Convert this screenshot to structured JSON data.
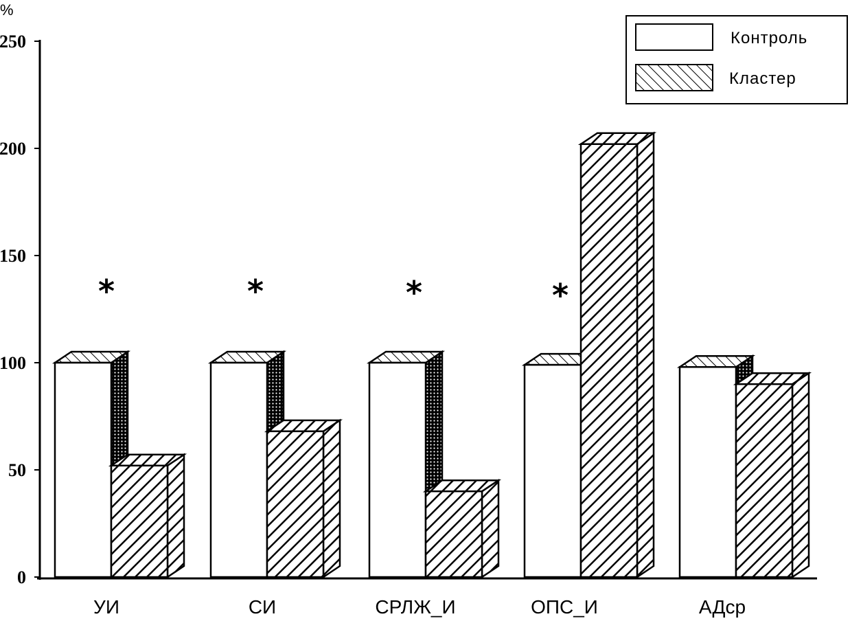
{
  "chart_data": {
    "type": "bar",
    "ylabel": "%",
    "ylim": [
      0,
      250
    ],
    "yticks": [
      0,
      50,
      100,
      150,
      200,
      250
    ],
    "categories": [
      "УИ",
      "СИ",
      "СРЛЖ_И",
      "ОПС_И",
      "АДср"
    ],
    "series": [
      {
        "name": "Контроль",
        "values": [
          100,
          100,
          100,
          99,
          98
        ],
        "pattern": "white"
      },
      {
        "name": "Кластер",
        "values": [
          52,
          68,
          40,
          202,
          90
        ],
        "pattern": "hatch"
      }
    ],
    "annotations": [
      {
        "category": "УИ",
        "text": "*"
      },
      {
        "category": "СИ",
        "text": "*"
      },
      {
        "category": "СРЛЖ_И",
        "text": "*"
      },
      {
        "category": "ОПС_И",
        "text": "*"
      }
    ],
    "legend": "top-right",
    "style": "3d-bars"
  }
}
